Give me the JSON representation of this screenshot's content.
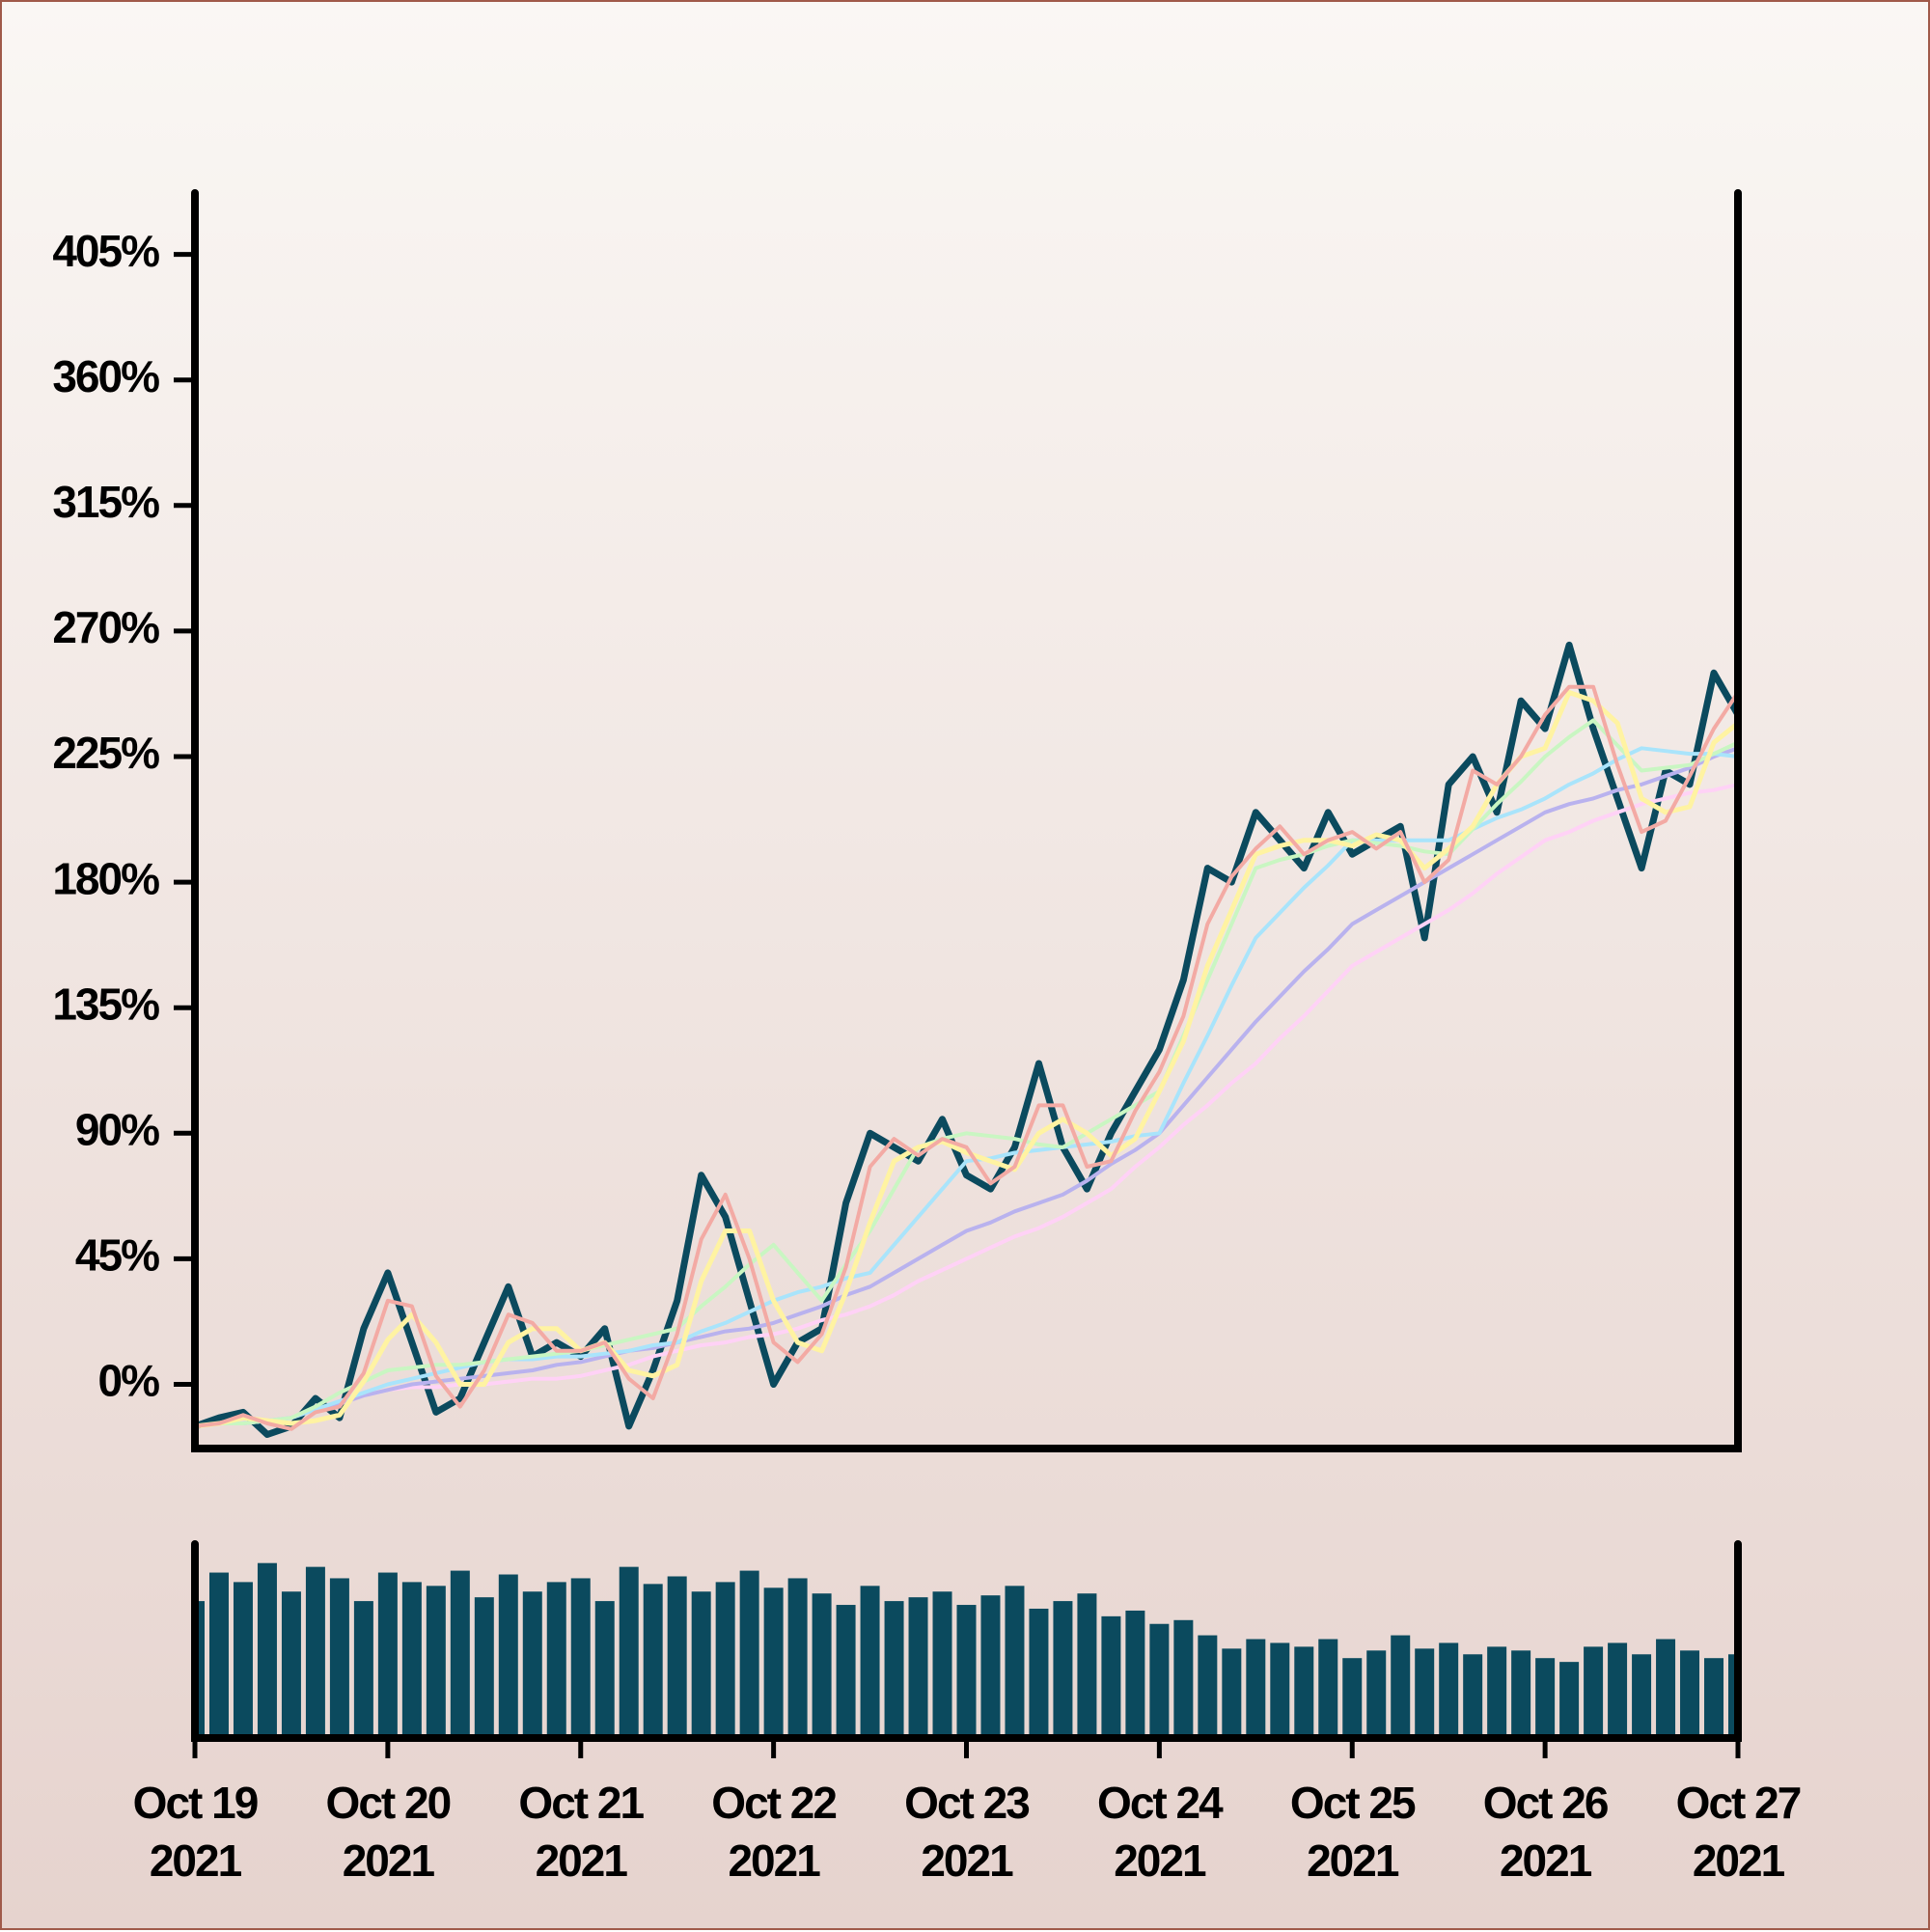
{
  "chart_data": [
    {
      "type": "line",
      "x": [
        "2021-10-19T00:00",
        "2021-10-19T03:00",
        "2021-10-19T06:00",
        "2021-10-19T09:00",
        "2021-10-19T12:00",
        "2021-10-19T15:00",
        "2021-10-19T18:00",
        "2021-10-19T21:00",
        "2021-10-20T00:00",
        "2021-10-20T03:00",
        "2021-10-20T06:00",
        "2021-10-20T09:00",
        "2021-10-20T12:00",
        "2021-10-20T15:00",
        "2021-10-20T18:00",
        "2021-10-20T21:00",
        "2021-10-21T00:00",
        "2021-10-21T03:00",
        "2021-10-21T06:00",
        "2021-10-21T09:00",
        "2021-10-21T12:00",
        "2021-10-21T15:00",
        "2021-10-21T18:00",
        "2021-10-21T21:00",
        "2021-10-22T00:00",
        "2021-10-22T03:00",
        "2021-10-22T06:00",
        "2021-10-22T09:00",
        "2021-10-22T12:00",
        "2021-10-22T15:00",
        "2021-10-22T18:00",
        "2021-10-22T21:00",
        "2021-10-23T00:00",
        "2021-10-23T03:00",
        "2021-10-23T06:00",
        "2021-10-23T09:00",
        "2021-10-23T12:00",
        "2021-10-23T15:00",
        "2021-10-23T18:00",
        "2021-10-23T21:00",
        "2021-10-24T00:00",
        "2021-10-24T03:00",
        "2021-10-24T06:00",
        "2021-10-24T09:00",
        "2021-10-24T12:00",
        "2021-10-24T15:00",
        "2021-10-24T18:00",
        "2021-10-24T21:00",
        "2021-10-25T00:00",
        "2021-10-25T03:00",
        "2021-10-25T06:00",
        "2021-10-25T09:00",
        "2021-10-25T12:00",
        "2021-10-25T15:00",
        "2021-10-25T18:00",
        "2021-10-25T21:00",
        "2021-10-26T00:00",
        "2021-10-26T03:00",
        "2021-10-26T06:00",
        "2021-10-26T09:00",
        "2021-10-26T12:00",
        "2021-10-26T15:00",
        "2021-10-26T18:00",
        "2021-10-26T21:00",
        "2021-10-27T00:00"
      ],
      "series": [
        {
          "color": "#0b4a5e",
          "width": 7,
          "values": [
            -15,
            -12,
            -10,
            -18,
            -15,
            -5,
            -12,
            20,
            40,
            15,
            -10,
            -5,
            15,
            35,
            10,
            15,
            10,
            20,
            -15,
            5,
            30,
            75,
            60,
            30,
            0,
            15,
            20,
            65,
            90,
            85,
            80,
            95,
            75,
            70,
            85,
            115,
            85,
            70,
            90,
            105,
            120,
            145,
            185,
            180,
            205,
            195,
            185,
            205,
            190,
            195,
            200,
            160,
            215,
            225,
            205,
            245,
            235,
            265,
            235,
            210,
            185,
            220,
            215,
            255,
            240
          ]
        },
        {
          "color": "#ffd2f6",
          "width": 4,
          "values": [
            -15,
            -14,
            -14,
            -13,
            -12,
            -9,
            -7,
            -4,
            -2,
            -1,
            -1,
            0,
            0,
            1,
            2,
            2,
            3,
            5,
            7,
            10,
            12,
            14,
            15,
            17,
            18,
            20,
            23,
            25,
            28,
            32,
            37,
            41,
            45,
            49,
            53,
            56,
            60,
            65,
            70,
            78,
            85,
            93,
            100,
            108,
            115,
            124,
            132,
            141,
            150,
            155,
            160,
            165,
            170,
            176,
            183,
            189,
            195,
            198,
            202,
            205,
            208,
            210,
            212,
            213,
            215
          ]
        },
        {
          "color": "#b9b2ee",
          "width": 4,
          "values": [
            -15,
            -14,
            -14,
            -13,
            -12,
            -9,
            -7,
            -4,
            -2,
            0,
            1,
            2,
            3,
            4,
            5,
            7,
            8,
            10,
            12,
            13,
            15,
            17,
            19,
            20,
            22,
            25,
            28,
            32,
            35,
            40,
            45,
            50,
            55,
            58,
            62,
            65,
            68,
            73,
            79,
            84,
            90,
            100,
            110,
            120,
            130,
            139,
            148,
            156,
            165,
            170,
            175,
            180,
            185,
            190,
            195,
            200,
            205,
            208,
            210,
            213,
            215,
            218,
            221,
            225,
            228
          ]
        },
        {
          "color": "#a9e4fb",
          "width": 4,
          "values": [
            -15,
            -14,
            -14,
            -13,
            -12,
            -9,
            -6,
            -3,
            0,
            2,
            4,
            6,
            8,
            9,
            9,
            10,
            10,
            11,
            12,
            14,
            15,
            19,
            22,
            26,
            30,
            33,
            35,
            38,
            40,
            50,
            60,
            70,
            80,
            81,
            83,
            84,
            85,
            86,
            87,
            89,
            90,
            108,
            125,
            143,
            160,
            169,
            178,
            186,
            195,
            195,
            195,
            195,
            195,
            199,
            203,
            206,
            210,
            215,
            219,
            224,
            228,
            227,
            226,
            226,
            225
          ]
        },
        {
          "color": "#c9f6c2",
          "width": 4,
          "values": [
            -15,
            -14,
            -14,
            -13,
            -12,
            -8,
            -3,
            1,
            5,
            6,
            7,
            7,
            8,
            9,
            10,
            11,
            12,
            14,
            16,
            18,
            20,
            28,
            35,
            43,
            50,
            40,
            30,
            43,
            55,
            70,
            85,
            88,
            90,
            89,
            88,
            86,
            85,
            90,
            95,
            100,
            105,
            125,
            145,
            165,
            185,
            188,
            190,
            193,
            195,
            194,
            193,
            191,
            190,
            199,
            208,
            216,
            225,
            232,
            238,
            229,
            220,
            221,
            222,
            226,
            230
          ]
        },
        {
          "color": "#fff3a2",
          "width": 5,
          "values": [
            -15,
            -14,
            -12,
            -13,
            -14,
            -13,
            -11,
            1,
            16,
            25,
            15,
            0,
            0,
            15,
            20,
            20,
            12,
            15,
            5,
            3,
            7,
            37,
            55,
            55,
            30,
            15,
            12,
            33,
            58,
            80,
            85,
            87,
            83,
            80,
            77,
            90,
            95,
            90,
            82,
            88,
            105,
            123,
            150,
            170,
            190,
            193,
            195,
            195,
            193,
            197,
            195,
            185,
            192,
            200,
            215,
            225,
            228,
            248,
            245,
            237,
            210,
            205,
            207,
            230,
            237
          ]
        },
        {
          "color": "#f3aaa4",
          "width": 4,
          "values": [
            -15,
            -14,
            -11,
            -14,
            -16,
            -10,
            -8,
            4,
            30,
            28,
            3,
            -8,
            5,
            25,
            22,
            12,
            12,
            15,
            2,
            -5,
            18,
            52,
            68,
            45,
            15,
            8,
            18,
            42,
            78,
            88,
            82,
            88,
            85,
            72,
            78,
            100,
            100,
            78,
            80,
            98,
            112,
            132,
            165,
            182,
            192,
            200,
            190,
            195,
            198,
            192,
            198,
            180,
            188,
            220,
            215,
            225,
            240,
            250,
            250,
            222,
            198,
            202,
            218,
            235,
            248
          ]
        }
      ],
      "xlim": [
        "2021-10-19T00:00",
        "2021-10-27T00:00"
      ],
      "ylim": [
        -23,
        427
      ],
      "yticks": [
        {
          "value": 0,
          "label": "0%"
        },
        {
          "value": 45,
          "label": "45%"
        },
        {
          "value": 90,
          "label": "90%"
        },
        {
          "value": 135,
          "label": "135%"
        },
        {
          "value": 180,
          "label": "180%"
        },
        {
          "value": 225,
          "label": "225%"
        },
        {
          "value": 270,
          "label": "270%"
        },
        {
          "value": 315,
          "label": "315%"
        },
        {
          "value": 360,
          "label": "360%"
        },
        {
          "value": 405,
          "label": "405%"
        }
      ]
    },
    {
      "type": "bar",
      "x": [
        "2021-10-19T00:00",
        "2021-10-19T03:00",
        "2021-10-19T06:00",
        "2021-10-19T09:00",
        "2021-10-19T12:00",
        "2021-10-19T15:00",
        "2021-10-19T18:00",
        "2021-10-19T21:00",
        "2021-10-20T00:00",
        "2021-10-20T03:00",
        "2021-10-20T06:00",
        "2021-10-20T09:00",
        "2021-10-20T12:00",
        "2021-10-20T15:00",
        "2021-10-20T18:00",
        "2021-10-20T21:00",
        "2021-10-21T00:00",
        "2021-10-21T03:00",
        "2021-10-21T06:00",
        "2021-10-21T09:00",
        "2021-10-21T12:00",
        "2021-10-21T15:00",
        "2021-10-21T18:00",
        "2021-10-21T21:00",
        "2021-10-22T00:00",
        "2021-10-22T03:00",
        "2021-10-22T06:00",
        "2021-10-22T09:00",
        "2021-10-22T12:00",
        "2021-10-22T15:00",
        "2021-10-22T18:00",
        "2021-10-22T21:00",
        "2021-10-23T00:00",
        "2021-10-23T03:00",
        "2021-10-23T06:00",
        "2021-10-23T09:00",
        "2021-10-23T12:00",
        "2021-10-23T15:00",
        "2021-10-23T18:00",
        "2021-10-23T21:00",
        "2021-10-24T00:00",
        "2021-10-24T03:00",
        "2021-10-24T06:00",
        "2021-10-24T09:00",
        "2021-10-24T12:00",
        "2021-10-24T15:00",
        "2021-10-24T18:00",
        "2021-10-24T21:00",
        "2021-10-25T00:00",
        "2021-10-25T03:00",
        "2021-10-25T06:00",
        "2021-10-25T09:00",
        "2021-10-25T12:00",
        "2021-10-25T15:00",
        "2021-10-25T18:00",
        "2021-10-25T21:00",
        "2021-10-26T00:00",
        "2021-10-26T03:00",
        "2021-10-26T06:00",
        "2021-10-26T09:00",
        "2021-10-26T12:00",
        "2021-10-26T15:00",
        "2021-10-26T18:00",
        "2021-10-26T21:00",
        "2021-10-27T00:00"
      ],
      "values": [
        70,
        85,
        80,
        90,
        75,
        88,
        82,
        70,
        85,
        80,
        78,
        86,
        72,
        84,
        75,
        80,
        82,
        70,
        88,
        79,
        83,
        75,
        80,
        86,
        77,
        82,
        74,
        68,
        78,
        70,
        72,
        75,
        68,
        73,
        78,
        66,
        70,
        74,
        62,
        65,
        58,
        60,
        52,
        45,
        50,
        48,
        46,
        50,
        40,
        44,
        52,
        45,
        48,
        42,
        46,
        44,
        40,
        38,
        46,
        48,
        42,
        50,
        44,
        40,
        42
      ],
      "color": "#0b4a5e",
      "xlim": [
        "2021-10-19T00:00",
        "2021-10-27T00:00"
      ],
      "ylim": [
        0,
        100
      ],
      "xticks": [
        {
          "value": "2021-10-19T00:00",
          "label": "Oct 19\n2021"
        },
        {
          "value": "2021-10-20T00:00",
          "label": "Oct 20\n2021"
        },
        {
          "value": "2021-10-21T00:00",
          "label": "Oct 21\n2021"
        },
        {
          "value": "2021-10-22T00:00",
          "label": "Oct 22\n2021"
        },
        {
          "value": "2021-10-23T00:00",
          "label": "Oct 23\n2021"
        },
        {
          "value": "2021-10-24T00:00",
          "label": "Oct 24\n2021"
        },
        {
          "value": "2021-10-25T00:00",
          "label": "Oct 25\n2021"
        },
        {
          "value": "2021-10-26T00:00",
          "label": "Oct 26\n2021"
        },
        {
          "value": "2021-10-27T00:00",
          "label": "Oct 27\n2021"
        }
      ]
    }
  ]
}
